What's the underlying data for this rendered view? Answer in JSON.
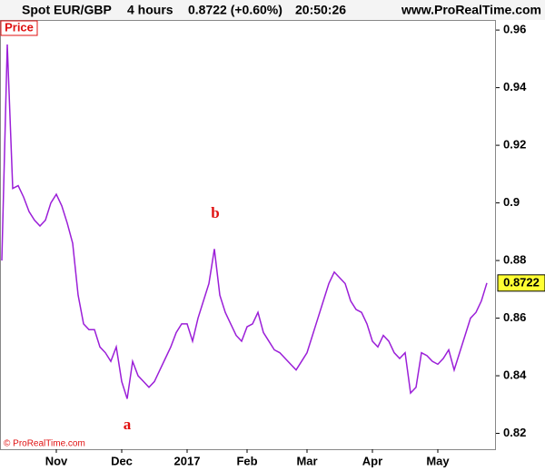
{
  "chart_data": {
    "type": "line",
    "title": "Spot EUR/GBP",
    "timeframe": "4 hours",
    "last": "0.8722 (+0.60%)",
    "time": "20:50:26",
    "source": "www.ProRealTime.com",
    "panel_label": "Price",
    "copyright": "© ProRealTime.com",
    "annotations": [
      "a",
      "b"
    ],
    "categories": [
      null,
      null,
      null,
      null,
      null,
      null,
      null,
      null,
      null,
      null,
      "Nov",
      null,
      null,
      null,
      null,
      null,
      null,
      null,
      null,
      null,
      null,
      null,
      "Dec",
      null,
      null,
      null,
      null,
      null,
      null,
      null,
      null,
      null,
      null,
      null,
      "2017",
      null,
      null,
      null,
      null,
      null,
      null,
      null,
      null,
      null,
      null,
      "Feb",
      null,
      null,
      null,
      null,
      null,
      null,
      null,
      null,
      null,
      null,
      "Mar",
      null,
      null,
      null,
      null,
      null,
      null,
      null,
      null,
      null,
      null,
      null,
      "Apr",
      null,
      null,
      null,
      null,
      null,
      null,
      null,
      null,
      null,
      null,
      null,
      "May",
      null,
      null,
      null,
      null,
      null,
      null,
      null,
      null,
      null
    ],
    "series": [
      {
        "name": "Spot EUR/GBP",
        "color": "#9b1fd8",
        "values": [
          0.88,
          0.955,
          0.905,
          0.906,
          0.902,
          0.897,
          0.894,
          0.892,
          0.894,
          0.9,
          0.903,
          0.899,
          0.893,
          0.886,
          0.868,
          0.858,
          0.856,
          0.856,
          0.85,
          0.848,
          0.845,
          0.85,
          0.838,
          0.832,
          0.845,
          0.84,
          0.838,
          0.836,
          0.838,
          0.842,
          0.846,
          0.85,
          0.855,
          0.858,
          0.858,
          0.852,
          0.86,
          0.866,
          0.872,
          0.884,
          0.868,
          0.862,
          0.858,
          0.854,
          0.852,
          0.857,
          0.858,
          0.862,
          0.855,
          0.852,
          0.849,
          0.848,
          0.846,
          0.844,
          0.842,
          0.845,
          0.848,
          0.854,
          0.86,
          0.866,
          0.872,
          0.876,
          0.874,
          0.872,
          0.866,
          0.863,
          0.862,
          0.858,
          0.852,
          0.85,
          0.854,
          0.852,
          0.848,
          0.846,
          0.848,
          0.834,
          0.836,
          0.848,
          0.847,
          0.845,
          0.844,
          0.846,
          0.849,
          0.842,
          0.848,
          0.854,
          0.86,
          0.862,
          0.866,
          0.8722
        ]
      }
    ],
    "ylim": [
      0.8145,
      0.9635
    ],
    "yticks": [
      0.96,
      0.94,
      0.92,
      0.9,
      0.88,
      0.86,
      0.84,
      0.82
    ],
    "grid": false
  }
}
